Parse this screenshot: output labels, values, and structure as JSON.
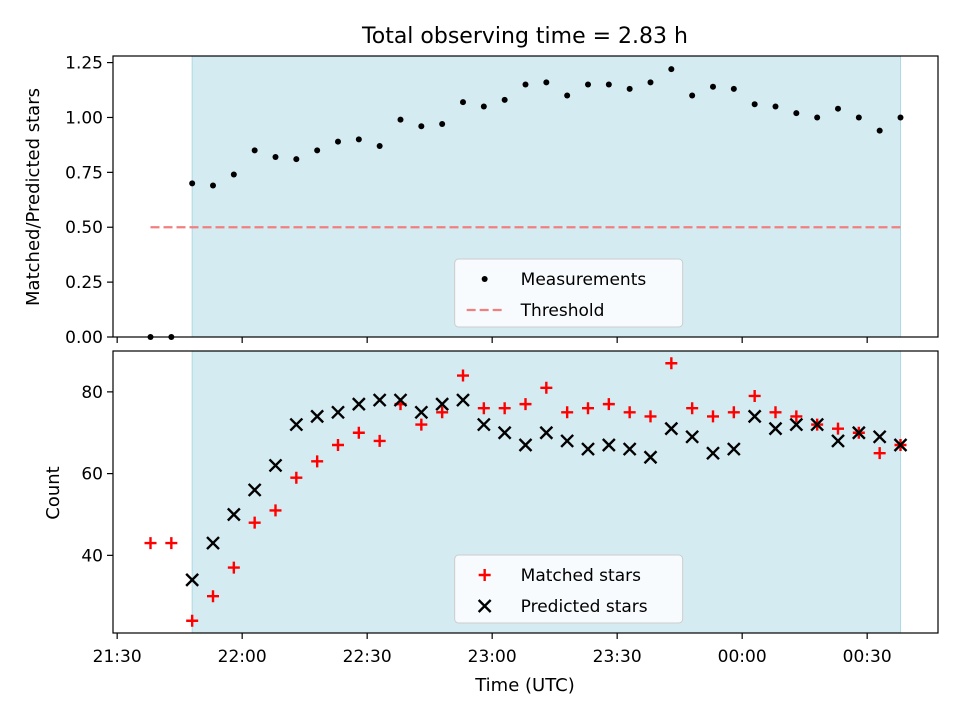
{
  "title": "Total observing time = 2.83 h",
  "chart_data": [
    {
      "type": "scatter",
      "panel": "top",
      "ylabel": "Matched/Predicted stars",
      "ylim": [
        0,
        1.28
      ],
      "yticks": [
        "0.00",
        "0.25",
        "0.50",
        "0.75",
        "1.00",
        "1.25"
      ],
      "ytick_values": [
        0,
        0.25,
        0.5,
        0.75,
        1.0,
        1.25
      ],
      "observing_window": [
        "21:48",
        "00:38"
      ],
      "threshold": {
        "name": "Threshold",
        "value": 0.5,
        "x_range": [
          "21:38",
          "00:38"
        ],
        "color": "#f08080",
        "style": "dashed"
      },
      "series": [
        {
          "name": "Measurements",
          "color": "#000000",
          "marker": "dot",
          "x": [
            "21:38",
            "21:43",
            "21:48",
            "21:53",
            "21:58",
            "22:03",
            "22:08",
            "22:13",
            "22:18",
            "22:23",
            "22:28",
            "22:33",
            "22:38",
            "22:43",
            "22:48",
            "22:53",
            "22:58",
            "23:03",
            "23:08",
            "23:13",
            "23:18",
            "23:23",
            "23:28",
            "23:33",
            "23:38",
            "23:43",
            "23:48",
            "23:53",
            "23:58",
            "00:03",
            "00:08",
            "00:13",
            "00:18",
            "00:23",
            "00:28",
            "00:33",
            "00:38"
          ],
          "y": [
            0.0,
            0.0,
            0.7,
            0.69,
            0.74,
            0.85,
            0.82,
            0.81,
            0.85,
            0.89,
            0.9,
            0.87,
            0.99,
            0.96,
            0.97,
            1.07,
            1.05,
            1.08,
            1.15,
            1.16,
            1.1,
            1.15,
            1.15,
            1.13,
            1.16,
            1.22,
            1.1,
            1.14,
            1.13,
            1.06,
            1.05,
            1.02,
            1.0,
            1.04,
            1.0,
            0.94,
            1.0
          ]
        }
      ],
      "legend": {
        "position": "lower-center",
        "entries": [
          "Measurements",
          "Threshold"
        ]
      }
    },
    {
      "type": "scatter",
      "panel": "bottom",
      "xlabel": "Time (UTC)",
      "ylabel": "Count",
      "ylim": [
        21,
        90
      ],
      "yticks": [
        "40",
        "60",
        "80"
      ],
      "ytick_values": [
        40,
        60,
        80
      ],
      "xticks": [
        "21:30",
        "22:00",
        "22:30",
        "23:00",
        "23:30",
        "00:00",
        "00:30"
      ],
      "xlim": [
        "21:29",
        "00:47"
      ],
      "observing_window": [
        "21:48",
        "00:38"
      ],
      "series": [
        {
          "name": "Matched stars",
          "color": "#ff0000",
          "marker": "plus",
          "x": [
            "21:38",
            "21:43",
            "21:48",
            "21:53",
            "21:58",
            "22:03",
            "22:08",
            "22:13",
            "22:18",
            "22:23",
            "22:28",
            "22:33",
            "22:38",
            "22:43",
            "22:48",
            "22:53",
            "22:58",
            "23:03",
            "23:08",
            "23:13",
            "23:18",
            "23:23",
            "23:28",
            "23:33",
            "23:38",
            "23:43",
            "23:48",
            "23:53",
            "23:58",
            "00:03",
            "00:08",
            "00:13",
            "00:18",
            "00:23",
            "00:28",
            "00:33",
            "00:38"
          ],
          "y": [
            43,
            43,
            24,
            30,
            37,
            48,
            51,
            59,
            63,
            67,
            70,
            68,
            77,
            72,
            75,
            84,
            76,
            76,
            77,
            81,
            75,
            76,
            77,
            75,
            74,
            87,
            76,
            74,
            75,
            79,
            75,
            74,
            72,
            71,
            70,
            65,
            67
          ]
        },
        {
          "name": "Predicted stars",
          "color": "#000000",
          "marker": "x",
          "x": [
            "21:48",
            "21:53",
            "21:58",
            "22:03",
            "22:08",
            "22:13",
            "22:18",
            "22:23",
            "22:28",
            "22:33",
            "22:38",
            "22:43",
            "22:48",
            "22:53",
            "22:58",
            "23:03",
            "23:08",
            "23:13",
            "23:18",
            "23:23",
            "23:28",
            "23:33",
            "23:38",
            "23:43",
            "23:48",
            "23:53",
            "23:58",
            "00:03",
            "00:08",
            "00:13",
            "00:18",
            "00:23",
            "00:28",
            "00:33",
            "00:38"
          ],
          "y": [
            34,
            43,
            50,
            56,
            62,
            72,
            74,
            75,
            77,
            78,
            78,
            75,
            77,
            78,
            72,
            70,
            67,
            70,
            68,
            66,
            67,
            66,
            64,
            71,
            69,
            65,
            66,
            74,
            71,
            72,
            72,
            68,
            70,
            69,
            67
          ]
        }
      ],
      "legend": {
        "position": "lower-center",
        "entries": [
          "Matched stars",
          "Predicted stars"
        ]
      }
    }
  ]
}
